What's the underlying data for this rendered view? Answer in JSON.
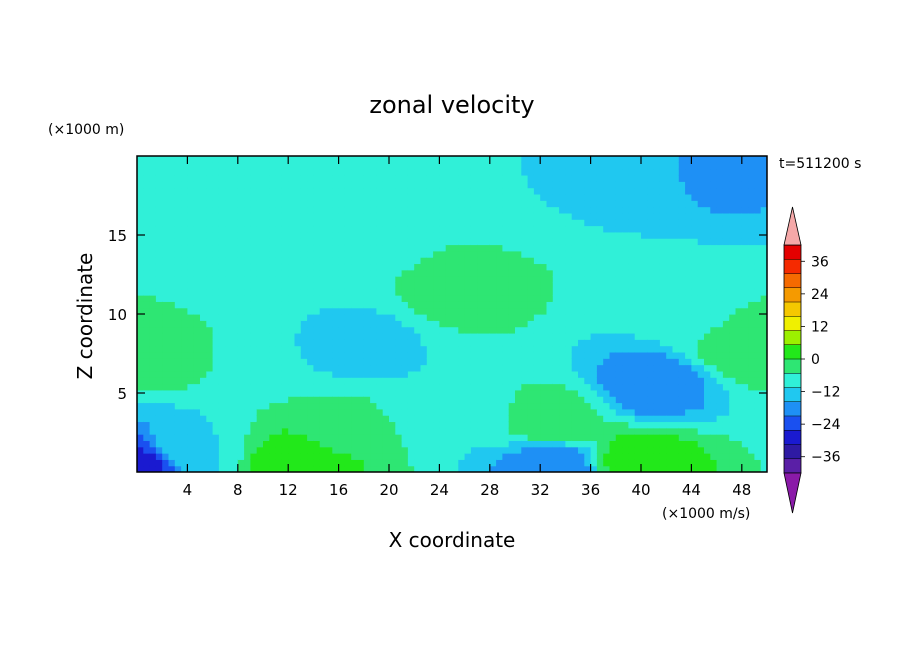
{
  "chart_data": {
    "type": "heatmap",
    "title": "zonal velocity",
    "xlabel": "X coordinate",
    "ylabel": "Z coordinate",
    "x_unit": "(×1000 m/s)",
    "y_unit": "(×1000 m)",
    "time_label": "t=511200 s",
    "xlim": [
      0,
      50
    ],
    "ylim": [
      0,
      20
    ],
    "x_ticks": [
      4,
      8,
      12,
      16,
      20,
      24,
      28,
      32,
      36,
      40,
      44,
      48
    ],
    "y_ticks": [
      5,
      10,
      15
    ],
    "colorbar": {
      "levels": [
        -42,
        -36,
        -30,
        -24,
        -18,
        -12,
        -6,
        0,
        6,
        12,
        18,
        24,
        30,
        36,
        42
      ],
      "tick_labels": [
        "36",
        "24",
        "12",
        "0",
        "−12",
        "−24",
        "−36"
      ],
      "tick_values": [
        36,
        24,
        12,
        0,
        -12,
        -24,
        -36
      ],
      "colors": [
        "#5a1fa6",
        "#2e1aa3",
        "#1a1ad0",
        "#1a50f0",
        "#1e90f5",
        "#20c8f0",
        "#30f0d8",
        "#2ee673",
        "#22e81a",
        "#9cf000",
        "#f0f000",
        "#f5c800",
        "#f59a00",
        "#f56a00",
        "#f52a00",
        "#e40000"
      ],
      "under_color": "#8a1aa8",
      "over_color": "#f5a8a8",
      "extend": "both"
    },
    "features": [
      {
        "x": 0,
        "z": 0.3,
        "u": -30
      },
      {
        "x": 2,
        "z": 8,
        "u": 6
      },
      {
        "x": 4,
        "z": 1.5,
        "u": -6
      },
      {
        "x": 8,
        "z": 12,
        "u": -6
      },
      {
        "x": 10,
        "z": 8,
        "u": -6
      },
      {
        "x": 13,
        "z": 0.5,
        "u": 12
      },
      {
        "x": 16,
        "z": 2.5,
        "u": 4
      },
      {
        "x": 18,
        "z": 8,
        "u": -8
      },
      {
        "x": 20,
        "z": 15,
        "u": -4
      },
      {
        "x": 26,
        "z": 12,
        "u": 6
      },
      {
        "x": 25,
        "z": 4,
        "u": -6
      },
      {
        "x": 30,
        "z": 17,
        "u": -6
      },
      {
        "x": 33,
        "z": 3.2,
        "u": 5
      },
      {
        "x": 33,
        "z": 0.4,
        "u": -18
      },
      {
        "x": 41,
        "z": 5.6,
        "u": -18
      },
      {
        "x": 40,
        "z": 0.6,
        "u": 12
      },
      {
        "x": 44,
        "z": 10,
        "u": -2
      },
      {
        "x": 48,
        "z": 8,
        "u": 5
      },
      {
        "x": 47,
        "z": 19,
        "u": -14
      },
      {
        "x": 38,
        "z": 19,
        "u": -8
      }
    ],
    "background_value": -4
  }
}
